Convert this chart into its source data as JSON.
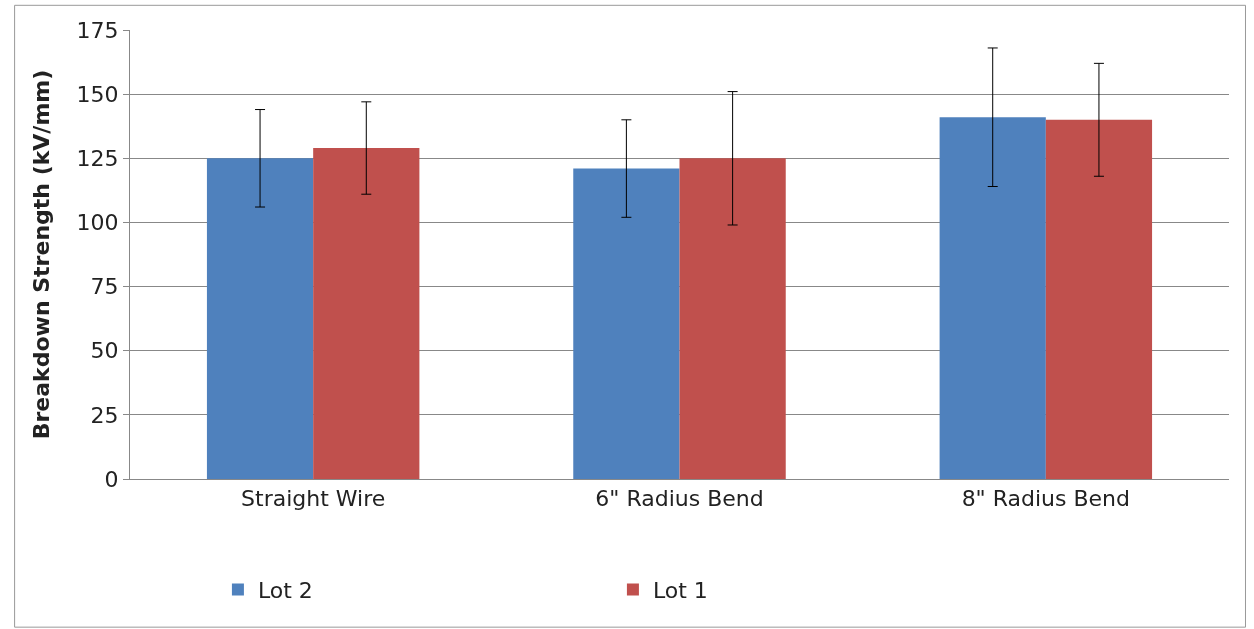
{
  "chart_data": {
    "type": "bar",
    "ylabel": "Breakdown Strength (kV/mm)",
    "categories": [
      "Straight Wire",
      "6\" Radius Bend",
      "8\" Radius Bend"
    ],
    "series": [
      {
        "name": "Lot 2",
        "color": "#4f81bd",
        "values": [
          125,
          121,
          141
        ],
        "errors": [
          19,
          19,
          27
        ]
      },
      {
        "name": "Lot 1",
        "color": "#c0504d",
        "values": [
          129,
          125,
          140
        ],
        "errors": [
          18,
          26,
          22
        ]
      }
    ],
    "ylim": [
      0,
      175
    ],
    "yticks": [
      0,
      25,
      50,
      75,
      100,
      125,
      150,
      175
    ],
    "grid": "y",
    "legend": "bottom"
  }
}
